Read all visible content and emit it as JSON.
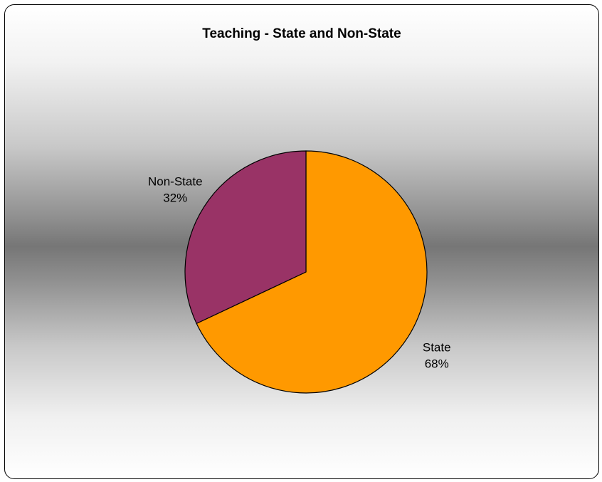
{
  "chart_data": {
    "type": "pie",
    "title": "Teaching - State and Non-State",
    "slices": [
      {
        "label": "State",
        "value": 68,
        "percent_label": "68%",
        "color": "#FF9900"
      },
      {
        "label": "Non-State",
        "value": 32,
        "percent_label": "32%",
        "color": "#993366"
      }
    ],
    "start_angle_deg": 0,
    "direction": "clockwise",
    "legend": "none",
    "border_color": "#000000"
  }
}
